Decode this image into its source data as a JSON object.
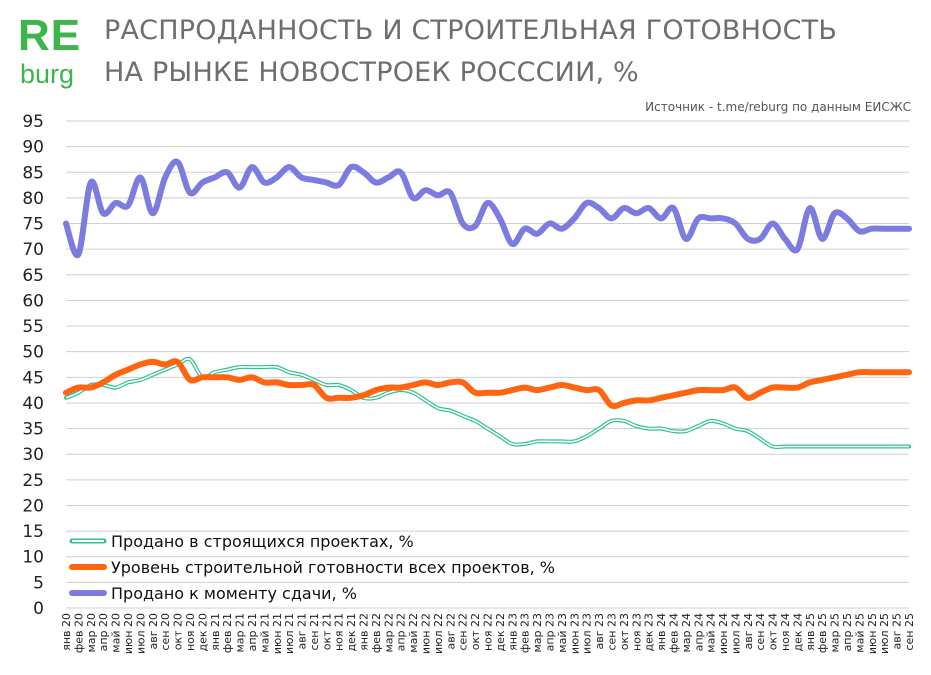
{
  "logo": {
    "re": "RE",
    "burg": "burg"
  },
  "header": {
    "title_line1": "РАСПРОДАННОСТЬ И СТРОИТЕЛЬНАЯ ГОТОВНОСТЬ",
    "title_line2": "НА РЫНКЕ НОВОСТРОЕК РОСССИИ, %",
    "source": "Источник - t.me/reburg по данным ЕИСЖС"
  },
  "colors": {
    "brand": "#3cb54a",
    "green": "#2ec28e",
    "orange": "#ff6410",
    "blue": "#7b7be0",
    "grid": "#cfcfcf"
  },
  "chart_data": {
    "type": "line",
    "title": "РАСПРОДАННОСТЬ И СТРОИТЕЛЬНАЯ ГОТОВНОСТЬ НА РЫНКЕ НОВОСТРОЕК РОСССИИ, %",
    "xlabel": "",
    "ylabel": "",
    "ylim": [
      0,
      95
    ],
    "yticks": [
      0,
      5,
      10,
      15,
      20,
      25,
      30,
      35,
      40,
      45,
      50,
      55,
      60,
      65,
      70,
      75,
      80,
      85,
      90,
      95
    ],
    "grid": true,
    "legend_position": "bottom-left",
    "x": [
      "янв 20",
      "фев 20",
      "мар 20",
      "апр 20",
      "май 20",
      "июн 20",
      "июл 20",
      "авг 20",
      "сен 20",
      "окт 20",
      "ноя 20",
      "дек 20",
      "янв 21",
      "фев 21",
      "мар 21",
      "апр 21",
      "май 21",
      "июн 21",
      "июл 21",
      "авг 21",
      "сен 21",
      "окт 21",
      "ноя 21",
      "дек 21",
      "янв 22",
      "фев 22",
      "мар 22",
      "апр 22",
      "май 22",
      "июн 22",
      "июл 22",
      "авг 22",
      "сен 22",
      "окт 22",
      "ноя 22",
      "дек 22",
      "янв 23",
      "фев 23",
      "мар 23",
      "апр 23",
      "май 23",
      "июн 23",
      "июл 23",
      "авг 23",
      "сен 23",
      "окт 23",
      "ноя 23",
      "дек 23",
      "янв 24",
      "фев 24",
      "мар 24",
      "апр 24",
      "май 24",
      "июн 24",
      "июл 24",
      "авг 24",
      "сен 24",
      "окт 24",
      "ноя 24",
      "дек 24",
      "янв 25",
      "фев 25",
      "мар 25",
      "апр 25",
      "май 25",
      "июн 25",
      "июл 25",
      "авг 25",
      "сен 25"
    ],
    "series": [
      {
        "name": "Продано в строящихся проектах, %",
        "color": "#2ec28e",
        "width": 2,
        "style": "double",
        "values": [
          41,
          42,
          43.5,
          43.5,
          43,
          44,
          44.5,
          45.5,
          46.5,
          47.5,
          48.5,
          45,
          46,
          46.5,
          47,
          47,
          47,
          47,
          46,
          45.5,
          44.5,
          43.5,
          43.5,
          42.5,
          41,
          41,
          42,
          42.5,
          42,
          40.5,
          39,
          38.5,
          37.5,
          36.5,
          35,
          33.5,
          32,
          32,
          32.5,
          32.5,
          32.5,
          32.5,
          33.5,
          35,
          36.5,
          36.5,
          35.5,
          35,
          35,
          34.5,
          34.5,
          35.5,
          36.5,
          36,
          35,
          34.5,
          33,
          31.5,
          31.5,
          31.5,
          31.5,
          31.5,
          31.5,
          31.5,
          31.5,
          31.5,
          31.5,
          31.5,
          31.5
        ]
      },
      {
        "name": "Уровень строительной готовности всех проектов, %",
        "color": "#ff6410",
        "width": 6,
        "style": "solid",
        "values": [
          42,
          43,
          43,
          44,
          45.5,
          46.5,
          47.5,
          48,
          47.5,
          48,
          44.5,
          45,
          45,
          45,
          44.5,
          45,
          44,
          44,
          43.5,
          43.5,
          43.5,
          41,
          41,
          41,
          41.5,
          42.5,
          43,
          43,
          43.5,
          44,
          43.5,
          44,
          44,
          42,
          42,
          42,
          42.5,
          43,
          42.5,
          43,
          43.5,
          43,
          42.5,
          42.5,
          39.5,
          40,
          40.5,
          40.5,
          41,
          41.5,
          42,
          42.5,
          42.5,
          42.5,
          43,
          41,
          42,
          43,
          43,
          43,
          44,
          44.5,
          45,
          45.5,
          46,
          46,
          46,
          46,
          46
        ]
      },
      {
        "name": "Продано  к моменту сдачи, %",
        "color": "#7b7be0",
        "width": 6,
        "style": "solid",
        "values": [
          75,
          69,
          83,
          77,
          79,
          78.5,
          84,
          77,
          84,
          87,
          81,
          83,
          84,
          85,
          82,
          86,
          83,
          84,
          86,
          84,
          83.5,
          83,
          82.5,
          86,
          85,
          83,
          84,
          85,
          80,
          81.5,
          80.5,
          81,
          75,
          74.5,
          79,
          76,
          71,
          74,
          73,
          75,
          74,
          76,
          79,
          78,
          76,
          78,
          77,
          78,
          76,
          78,
          72,
          76,
          76,
          76,
          75,
          72,
          72,
          75,
          72,
          70,
          78,
          72,
          77,
          76,
          73.5,
          74,
          74,
          74,
          74
        ]
      }
    ]
  }
}
